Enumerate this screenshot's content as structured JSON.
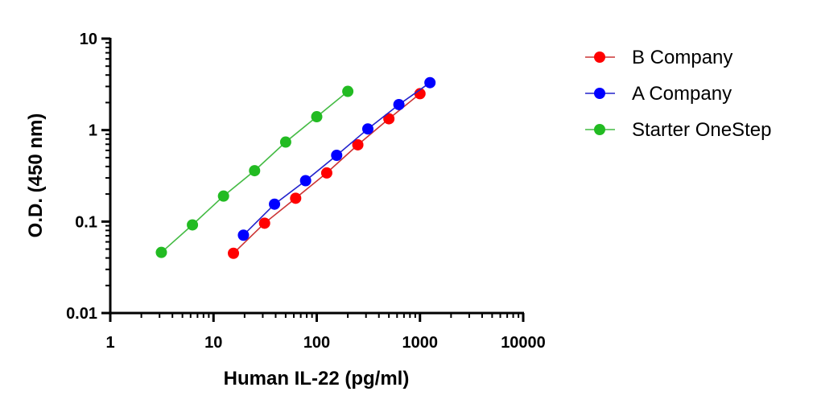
{
  "chart_data": {
    "type": "scatter",
    "title": "",
    "xlabel": "Human IL-22 (pg/ml)",
    "ylabel": "O.D. (450 nm)",
    "x_scale": "log",
    "y_scale": "log",
    "xlim": [
      1,
      10000
    ],
    "ylim": [
      0.01,
      10
    ],
    "x_ticks": [
      {
        "value": 1,
        "label": "1"
      },
      {
        "value": 10,
        "label": "10"
      },
      {
        "value": 100,
        "label": "100"
      },
      {
        "value": 1000,
        "label": "1000"
      },
      {
        "value": 10000,
        "label": "10000"
      }
    ],
    "y_ticks": [
      {
        "value": 0.01,
        "label": "0.01"
      },
      {
        "value": 0.1,
        "label": "0.1"
      },
      {
        "value": 1,
        "label": "1"
      },
      {
        "value": 10,
        "label": "10"
      }
    ],
    "grid": false,
    "legend_position": "right",
    "series": [
      {
        "name": "B Company",
        "color": "#ff0000",
        "line_color": "#cc3333",
        "x": [
          15.6,
          31.25,
          62.5,
          125,
          250,
          500,
          1000
        ],
        "y": [
          0.045,
          0.096,
          0.18,
          0.34,
          0.69,
          1.33,
          2.5
        ]
      },
      {
        "name": "A Company",
        "color": "#0000ff",
        "line_color": "#2222cc",
        "x": [
          19.5,
          39,
          78,
          156,
          312.5,
          625,
          1250
        ],
        "y": [
          0.071,
          0.155,
          0.28,
          0.53,
          1.03,
          1.9,
          3.3
        ]
      },
      {
        "name": "Starter OneStep",
        "color": "#22bb22",
        "line_color": "#44bb44",
        "x": [
          3.125,
          6.25,
          12.5,
          25,
          50,
          100,
          200
        ],
        "y": [
          0.046,
          0.092,
          0.19,
          0.36,
          0.74,
          1.4,
          2.65
        ]
      }
    ]
  }
}
